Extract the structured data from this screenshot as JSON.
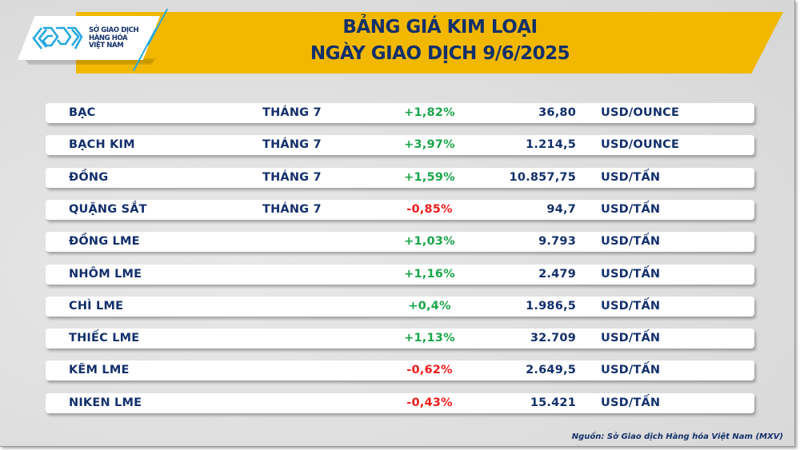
{
  "header": {
    "title_line1": "BẢNG GIÁ KIM LOẠI",
    "title_line2": "NGÀY GIAO DỊCH 9/6/2025",
    "banner_color": "#f2b800",
    "title_color": "#13306b"
  },
  "logo": {
    "icon": "mxv-logo-icon",
    "line1": "SỞ GIAO DỊCH",
    "line2": "HÀNG HÓA",
    "line3": "VIỆT NAM",
    "mark_color": "#27a8e0"
  },
  "colors": {
    "up": "#1aa64b",
    "down": "#ee1c1c",
    "text": "#13306b"
  },
  "rows": [
    {
      "name": "BẠC",
      "month": "THÁNG 7",
      "change": "+1,82%",
      "direction": "up",
      "price": "36,80",
      "unit": "USD/OUNCE"
    },
    {
      "name": "BẠCH KIM",
      "month": "THÁNG 7",
      "change": "+3,97%",
      "direction": "up",
      "price": "1.214,5",
      "unit": "USD/OUNCE"
    },
    {
      "name": "ĐỒNG",
      "month": "THÁNG 7",
      "change": "+1,59%",
      "direction": "up",
      "price": "10.857,75",
      "unit": "USD/TẤN"
    },
    {
      "name": "QUẶNG SẮT",
      "month": "THÁNG 7",
      "change": "-0,85%",
      "direction": "down",
      "price": "94,7",
      "unit": "USD/TẤN"
    },
    {
      "name": "ĐỒNG LME",
      "month": "",
      "change": "+1,03%",
      "direction": "up",
      "price": "9.793",
      "unit": "USD/TẤN"
    },
    {
      "name": "NHÔM LME",
      "month": "",
      "change": "+1,16%",
      "direction": "up",
      "price": "2.479",
      "unit": "USD/TẤN"
    },
    {
      "name": "CHÌ LME",
      "month": "",
      "change": "+0,4%",
      "direction": "up",
      "price": "1.986,5",
      "unit": "USD/TẤN"
    },
    {
      "name": "THIẾC LME",
      "month": "",
      "change": "+1,13%",
      "direction": "up",
      "price": "32.709",
      "unit": "USD/TẤN"
    },
    {
      "name": "KẼM LME",
      "month": "",
      "change": "-0,62%",
      "direction": "down",
      "price": "2.649,5",
      "unit": "USD/TẤN"
    },
    {
      "name": "NIKEN LME",
      "month": "",
      "change": "-0,43%",
      "direction": "down",
      "price": "15.421",
      "unit": "USD/TẤN"
    }
  ],
  "footer": {
    "source": "Nguồn: Sở Giao dịch Hàng hóa Việt Nam (MXV)"
  }
}
